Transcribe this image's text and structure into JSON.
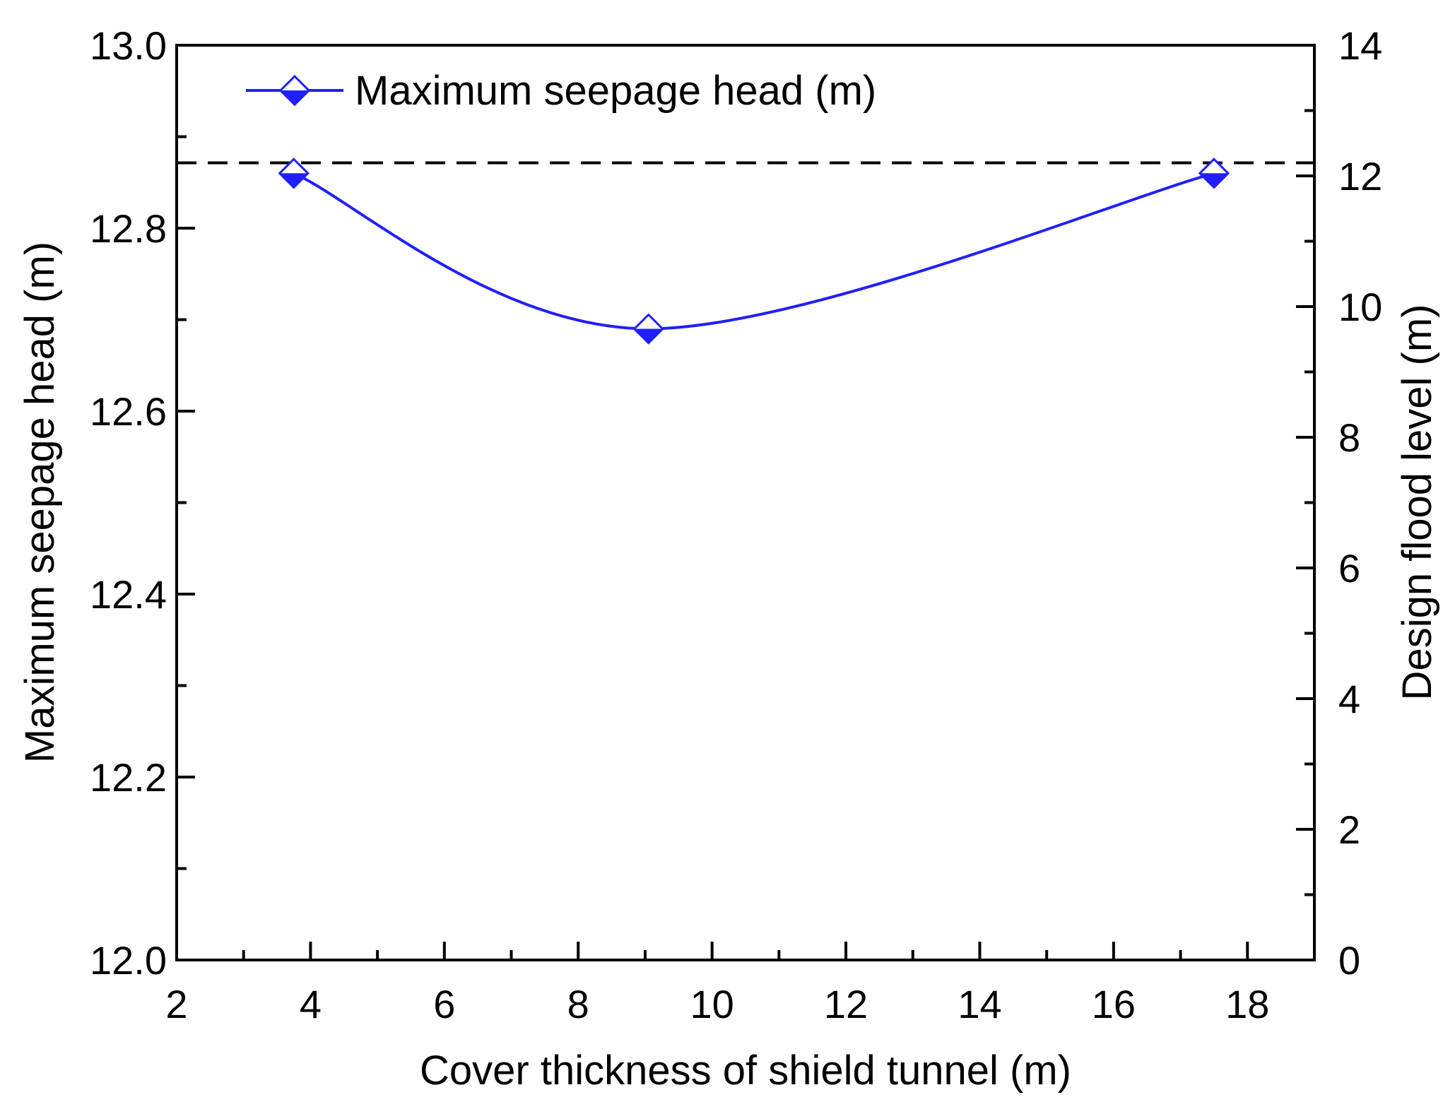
{
  "chart_data": {
    "type": "line",
    "xlabel": "Cover thickness of shield tunnel (m)",
    "ylabel": "Maximum seepage head (m)",
    "y2label": "Design flood level (m)",
    "xlim": [
      2,
      19
    ],
    "ylim": [
      12.0,
      13.0
    ],
    "y2lim": [
      0,
      14
    ],
    "x_ticks": [
      "2",
      "4",
      "6",
      "8",
      "10",
      "12",
      "14",
      "16",
      "18"
    ],
    "y_ticks": [
      "12.0",
      "12.2",
      "12.4",
      "12.6",
      "12.8",
      "13.0"
    ],
    "y2_ticks": [
      "0",
      "2",
      "4",
      "6",
      "8",
      "10",
      "12",
      "14"
    ],
    "grid": false,
    "legend_position": "top-left",
    "series": [
      {
        "name": "Maximum seepage head (m)",
        "x": [
          3.75,
          9.05,
          17.5
        ],
        "y": [
          12.86,
          12.69,
          12.86
        ],
        "color": "#1f1fff",
        "marker": "half-filled-diamond"
      }
    ],
    "reference_lines": [
      {
        "axis": "y2",
        "value": 12.2,
        "style": "dashed",
        "color": "#000000"
      }
    ]
  }
}
